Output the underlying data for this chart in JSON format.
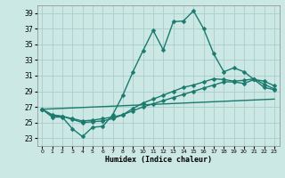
{
  "title": "",
  "xlabel": "Humidex (Indice chaleur)",
  "ylabel": "",
  "bg_color": "#cce8e4",
  "grid_color": "#b8d8d4",
  "line_color": "#1a7a6e",
  "xlim": [
    -0.5,
    23.5
  ],
  "ylim": [
    22,
    40
  ],
  "yticks": [
    23,
    25,
    27,
    29,
    31,
    33,
    35,
    37,
    39
  ],
  "xticks": [
    0,
    1,
    2,
    3,
    4,
    5,
    6,
    7,
    8,
    9,
    10,
    11,
    12,
    13,
    14,
    15,
    16,
    17,
    18,
    19,
    20,
    21,
    22,
    23
  ],
  "curve1_x": [
    0,
    1,
    2,
    3,
    4,
    5,
    6,
    7,
    8,
    9,
    10,
    11,
    12,
    13,
    14,
    15,
    16,
    17,
    18,
    19,
    20,
    21,
    22,
    23
  ],
  "curve1_y": [
    26.7,
    25.7,
    25.7,
    24.2,
    23.2,
    24.4,
    24.5,
    26.0,
    28.5,
    31.5,
    34.2,
    36.8,
    34.3,
    37.9,
    38.0,
    39.3,
    37.0,
    33.8,
    31.5,
    32.0,
    31.5,
    30.5,
    29.5,
    29.2
  ],
  "curve2_x": [
    0,
    23
  ],
  "curve2_y": [
    26.7,
    28.0
  ],
  "curve3_x": [
    0,
    1,
    2,
    3,
    4,
    5,
    6,
    7,
    8,
    9,
    10,
    11,
    12,
    13,
    14,
    15,
    16,
    17,
    18,
    19,
    20,
    21,
    22,
    23
  ],
  "curve3_y": [
    26.7,
    26.0,
    25.8,
    25.5,
    25.2,
    25.3,
    25.5,
    25.7,
    26.0,
    26.5,
    27.0,
    27.4,
    27.8,
    28.2,
    28.6,
    29.0,
    29.4,
    29.8,
    30.2,
    30.2,
    30.0,
    30.5,
    30.3,
    29.7
  ],
  "curve4_x": [
    0,
    1,
    2,
    3,
    4,
    5,
    6,
    7,
    8,
    9,
    10,
    11,
    12,
    13,
    14,
    15,
    16,
    17,
    18,
    19,
    20,
    21,
    22,
    23
  ],
  "curve4_y": [
    26.7,
    25.9,
    25.8,
    25.4,
    25.0,
    25.1,
    25.2,
    25.5,
    26.0,
    26.8,
    27.5,
    28.0,
    28.5,
    29.0,
    29.5,
    29.8,
    30.2,
    30.6,
    30.5,
    30.3,
    30.4,
    30.6,
    29.9,
    29.3
  ],
  "marker_size": 2.5,
  "linewidth": 1.0
}
